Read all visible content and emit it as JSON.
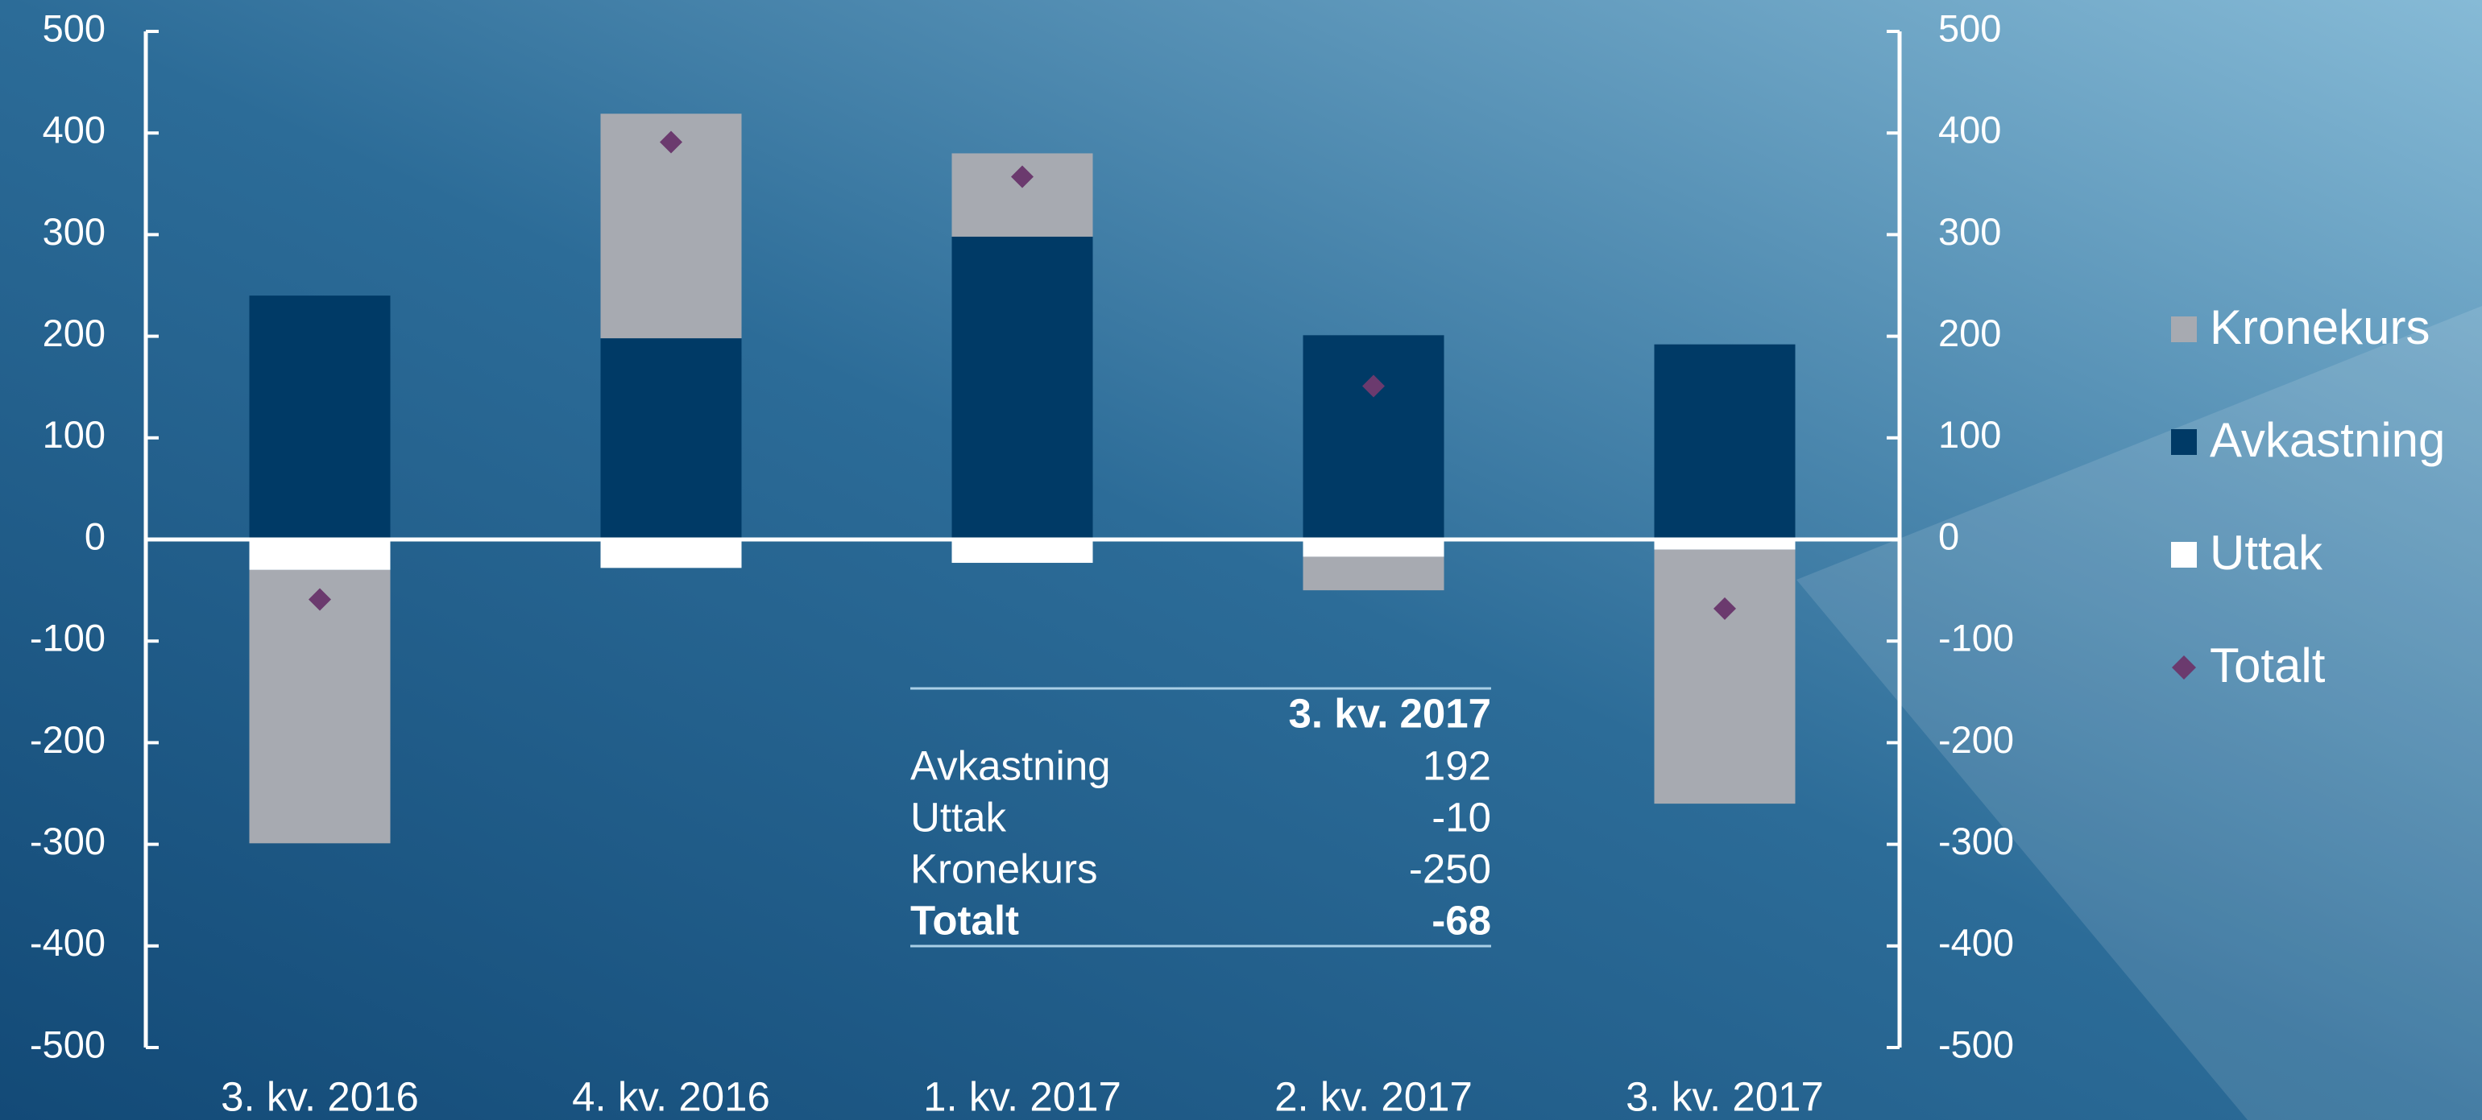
{
  "chart_data": {
    "type": "bar",
    "categories": [
      "3. kv. 2016",
      "4. kv. 2016",
      "1. kv. 2017",
      "2. kv. 2017",
      "3. kv. 2017"
    ],
    "series": [
      {
        "name": "Kronekurs",
        "type": "bar",
        "color": "#a7aab1",
        "values": [
          -269,
          221,
          82,
          -33,
          -250
        ]
      },
      {
        "name": "Avkastning",
        "type": "bar",
        "color": "#003a66",
        "values": [
          240,
          198,
          298,
          201,
          192
        ]
      },
      {
        "name": "Uttak",
        "type": "bar",
        "color": "#ffffff",
        "values": [
          -30,
          -28,
          -23,
          -17,
          -10
        ]
      },
      {
        "name": "Totalt",
        "type": "scatter",
        "color": "#6b3a6e",
        "values": [
          -59,
          391,
          357,
          151,
          -68
        ]
      }
    ],
    "stacked": true,
    "ylim": [
      -500,
      500
    ],
    "yticks": [
      -500,
      -400,
      -300,
      -200,
      -100,
      0,
      100,
      200,
      300,
      400,
      500
    ],
    "y2lim": [
      -500,
      500
    ],
    "y2ticks": [
      -500,
      -400,
      -300,
      -200,
      -100,
      0,
      100,
      200,
      300,
      400,
      500
    ],
    "legend": "right"
  },
  "table": {
    "header": "3. kv. 2017",
    "rows": [
      [
        "Avkastning",
        "192"
      ],
      [
        "Uttak",
        "-10"
      ],
      [
        "Kronekurs",
        "-250"
      ],
      [
        "Totalt",
        "-68"
      ]
    ]
  }
}
